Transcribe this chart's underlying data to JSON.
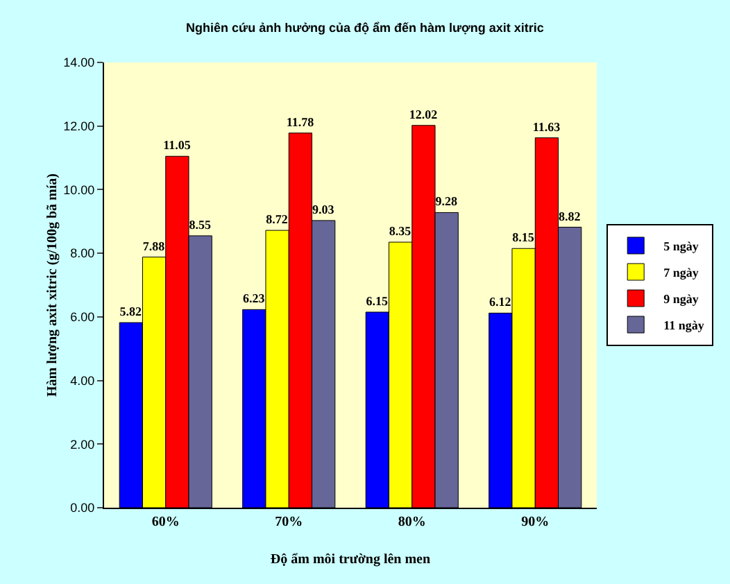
{
  "chart_data": {
    "type": "bar",
    "title": "Nghiên cứu ảnh hưởng của độ ẩm đến hàm lượng axit xitric",
    "xlabel": "Độ ẩm môi trường lên men",
    "ylabel": "Hàm lượng axit xitric (g/100g bã mía)",
    "categories": [
      "60%",
      "70%",
      "80%",
      "90%"
    ],
    "series": [
      {
        "name": "5 ngày",
        "color": "#0000ff",
        "values": [
          5.82,
          6.23,
          6.15,
          6.12
        ]
      },
      {
        "name": "7 ngày",
        "color": "#ffff00",
        "values": [
          7.88,
          8.72,
          8.35,
          8.15
        ]
      },
      {
        "name": "9 ngày",
        "color": "#ff0000",
        "values": [
          11.05,
          11.78,
          12.02,
          11.63
        ]
      },
      {
        "name": "11 ngày",
        "color": "#666699",
        "values": [
          8.55,
          9.03,
          9.28,
          8.82
        ]
      }
    ],
    "ylim": [
      0,
      14
    ],
    "yticks": [
      {
        "value": 0,
        "label": "0.00"
      },
      {
        "value": 2,
        "label": "2.00"
      },
      {
        "value": 4,
        "label": "4.00"
      },
      {
        "value": 6,
        "label": "6.00"
      },
      {
        "value": 8,
        "label": "8.00"
      },
      {
        "value": 10,
        "label": "10.00"
      },
      {
        "value": 12,
        "label": "12.00"
      },
      {
        "value": 14,
        "label": "14.00"
      }
    ],
    "data_labels": true,
    "legend": "right"
  }
}
